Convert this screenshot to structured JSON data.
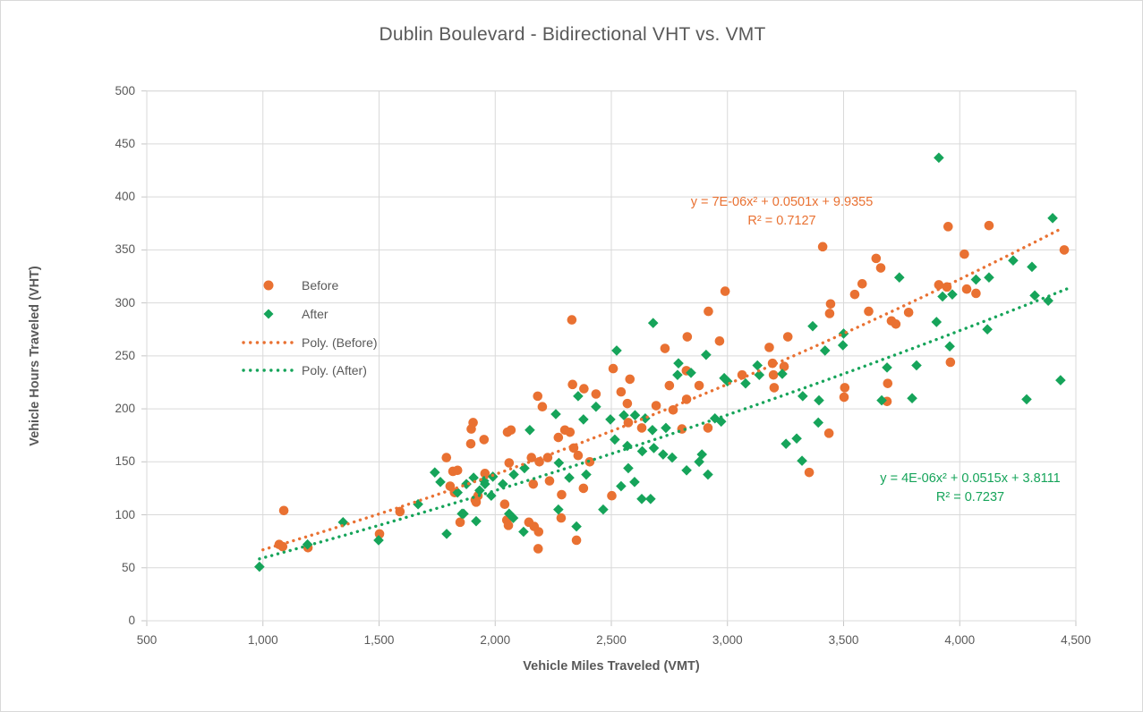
{
  "title": "Dublin Boulevard - Bidirectional VHT vs. VMT",
  "axes": {
    "x_label": "Vehicle Miles Traveled (VMT)",
    "y_label": "Vehicle Hours Traveled (VHT)",
    "x_tick_labels": [
      "500",
      "1,000",
      "1,500",
      "2,000",
      "2,500",
      "3,000",
      "3,500",
      "4,000",
      "4,500"
    ],
    "y_tick_labels": [
      "0",
      "50",
      "100",
      "150",
      "200",
      "250",
      "300",
      "350",
      "400",
      "450",
      "500"
    ]
  },
  "legend": {
    "items": [
      {
        "label": "Before",
        "marker": "circle",
        "color": "#E97132"
      },
      {
        "label": "After",
        "marker": "diamond",
        "color": "#16A45A"
      },
      {
        "label": "Poly. (Before)",
        "marker": "dotted-line",
        "color": "#E97132"
      },
      {
        "label": "Poly. (After)",
        "marker": "dotted-line",
        "color": "#16A45A"
      }
    ]
  },
  "annotations": {
    "before": {
      "line1": "y = 7E-06x² + 0.0501x + 9.9355",
      "line2": "R² = 0.7127"
    },
    "after": {
      "line1": "y = 4E-06x² + 0.0515x + 3.8111",
      "line2": "R² = 0.7237"
    }
  },
  "colors": {
    "before": "#E97132",
    "after": "#16A45A",
    "gridline": "#D9D9D9",
    "tick": "#C6C6C6",
    "text": "#595959"
  },
  "chart_data": {
    "type": "scatter",
    "title": "Dublin Boulevard - Bidirectional VHT vs. VMT",
    "xlabel": "Vehicle Miles Traveled (VMT)",
    "ylabel": "Vehicle Hours Traveled (VHT)",
    "xlim": [
      500,
      4500
    ],
    "ylim": [
      0,
      500
    ],
    "x_tick_step": 500,
    "y_tick_step": 50,
    "grid": true,
    "legend_position": "inside-upper-left",
    "series": [
      {
        "name": "Before",
        "marker": "circle",
        "color": "#E97132",
        "points": [
          [
            1070,
            72
          ],
          [
            1085,
            70
          ],
          [
            1090,
            104
          ],
          [
            1194,
            69
          ],
          [
            1502,
            82
          ],
          [
            1590,
            103
          ],
          [
            1790,
            154
          ],
          [
            1806,
            127
          ],
          [
            1818,
            141
          ],
          [
            1825,
            121
          ],
          [
            1838,
            142
          ],
          [
            1849,
            93
          ],
          [
            1895,
            167
          ],
          [
            1897,
            181
          ],
          [
            1905,
            187
          ],
          [
            1914,
            114
          ],
          [
            1918,
            112
          ],
          [
            1926,
            118
          ],
          [
            1952,
            171
          ],
          [
            1956,
            139
          ],
          [
            2041,
            110
          ],
          [
            2050,
            95
          ],
          [
            2053,
            178
          ],
          [
            2057,
            90
          ],
          [
            2060,
            149
          ],
          [
            2068,
            180
          ],
          [
            2145,
            93
          ],
          [
            2156,
            154
          ],
          [
            2164,
            129
          ],
          [
            2168,
            89
          ],
          [
            2183,
            212
          ],
          [
            2185,
            68
          ],
          [
            2187,
            84
          ],
          [
            2190,
            150
          ],
          [
            2203,
            202
          ],
          [
            2226,
            154
          ],
          [
            2234,
            132
          ],
          [
            2272,
            173
          ],
          [
            2284,
            97
          ],
          [
            2286,
            119
          ],
          [
            2300,
            180
          ],
          [
            2322,
            178
          ],
          [
            2330,
            284
          ],
          [
            2333,
            223
          ],
          [
            2338,
            163
          ],
          [
            2350,
            76
          ],
          [
            2357,
            156
          ],
          [
            2380,
            125
          ],
          [
            2382,
            219
          ],
          [
            2407,
            150
          ],
          [
            2434,
            214
          ],
          [
            2502,
            118
          ],
          [
            2508,
            238
          ],
          [
            2542,
            216
          ],
          [
            2569,
            205
          ],
          [
            2573,
            187
          ],
          [
            2580,
            228
          ],
          [
            2631,
            182
          ],
          [
            2693,
            203
          ],
          [
            2731,
            257
          ],
          [
            2750,
            222
          ],
          [
            2766,
            199
          ],
          [
            2804,
            181
          ],
          [
            2823,
            236
          ],
          [
            2824,
            209
          ],
          [
            2827,
            268
          ],
          [
            2878,
            222
          ],
          [
            2916,
            182
          ],
          [
            2918,
            292
          ],
          [
            2966,
            264
          ],
          [
            2990,
            311
          ],
          [
            3063,
            232
          ],
          [
            3180,
            258
          ],
          [
            3194,
            243
          ],
          [
            3198,
            232
          ],
          [
            3201,
            220
          ],
          [
            3244,
            240
          ],
          [
            3260,
            268
          ],
          [
            3352,
            140
          ],
          [
            3410,
            353
          ],
          [
            3437,
            177
          ],
          [
            3440,
            290
          ],
          [
            3444,
            299
          ],
          [
            3502,
            211
          ],
          [
            3505,
            220
          ],
          [
            3548,
            308
          ],
          [
            3580,
            318
          ],
          [
            3608,
            292
          ],
          [
            3640,
            342
          ],
          [
            3660,
            333
          ],
          [
            3687,
            207
          ],
          [
            3690,
            224
          ],
          [
            3706,
            283
          ],
          [
            3725,
            280
          ],
          [
            3780,
            291
          ],
          [
            3910,
            317
          ],
          [
            3945,
            315
          ],
          [
            3950,
            372
          ],
          [
            3960,
            244
          ],
          [
            4020,
            346
          ],
          [
            4030,
            313
          ],
          [
            4070,
            309
          ],
          [
            4126,
            373
          ],
          [
            4450,
            350
          ]
        ]
      },
      {
        "name": "After",
        "marker": "diamond",
        "color": "#16A45A",
        "points": [
          [
            985,
            51
          ],
          [
            1192,
            72
          ],
          [
            1345,
            93
          ],
          [
            1498,
            76
          ],
          [
            1668,
            110
          ],
          [
            1740,
            140
          ],
          [
            1764,
            131
          ],
          [
            1791,
            82
          ],
          [
            1838,
            121
          ],
          [
            1857,
            101
          ],
          [
            1864,
            101
          ],
          [
            1876,
            129
          ],
          [
            1907,
            135
          ],
          [
            1918,
            94
          ],
          [
            1933,
            123
          ],
          [
            1952,
            132
          ],
          [
            1956,
            129
          ],
          [
            1983,
            118
          ],
          [
            1990,
            136
          ],
          [
            2033,
            129
          ],
          [
            2060,
            101
          ],
          [
            2078,
            97
          ],
          [
            2080,
            138
          ],
          [
            2122,
            84
          ],
          [
            2126,
            144
          ],
          [
            2149,
            180
          ],
          [
            2261,
            195
          ],
          [
            2272,
            105
          ],
          [
            2274,
            149
          ],
          [
            2319,
            135
          ],
          [
            2350,
            89
          ],
          [
            2357,
            212
          ],
          [
            2380,
            190
          ],
          [
            2392,
            138
          ],
          [
            2434,
            202
          ],
          [
            2465,
            105
          ],
          [
            2496,
            190
          ],
          [
            2515,
            171
          ],
          [
            2523,
            255
          ],
          [
            2542,
            127
          ],
          [
            2554,
            194
          ],
          [
            2569,
            165
          ],
          [
            2573,
            144
          ],
          [
            2600,
            131
          ],
          [
            2602,
            194
          ],
          [
            2631,
            115
          ],
          [
            2633,
            160
          ],
          [
            2646,
            191
          ],
          [
            2669,
            115
          ],
          [
            2677,
            180
          ],
          [
            2680,
            281
          ],
          [
            2683,
            163
          ],
          [
            2723,
            157
          ],
          [
            2735,
            182
          ],
          [
            2762,
            154
          ],
          [
            2785,
            232
          ],
          [
            2789,
            243
          ],
          [
            2824,
            142
          ],
          [
            2843,
            234
          ],
          [
            2878,
            150
          ],
          [
            2890,
            157
          ],
          [
            2908,
            251
          ],
          [
            2916,
            138
          ],
          [
            2946,
            191
          ],
          [
            2973,
            188
          ],
          [
            2986,
            229
          ],
          [
            3000,
            226
          ],
          [
            3078,
            224
          ],
          [
            3129,
            241
          ],
          [
            3137,
            232
          ],
          [
            3236,
            233
          ],
          [
            3252,
            167
          ],
          [
            3298,
            172
          ],
          [
            3321,
            151
          ],
          [
            3324,
            212
          ],
          [
            3367,
            278
          ],
          [
            3391,
            187
          ],
          [
            3394,
            208
          ],
          [
            3420,
            255
          ],
          [
            3497,
            260
          ],
          [
            3500,
            271
          ],
          [
            3664,
            208
          ],
          [
            3687,
            239
          ],
          [
            3740,
            324
          ],
          [
            3795,
            210
          ],
          [
            3814,
            241
          ],
          [
            3900,
            282
          ],
          [
            3910,
            437
          ],
          [
            3926,
            306
          ],
          [
            3957,
            259
          ],
          [
            3968,
            308
          ],
          [
            4070,
            322
          ],
          [
            4119,
            275
          ],
          [
            4126,
            324
          ],
          [
            4230,
            340
          ],
          [
            4288,
            209
          ],
          [
            4311,
            334
          ],
          [
            4323,
            307
          ],
          [
            4381,
            302
          ],
          [
            4400,
            380
          ],
          [
            4434,
            227
          ]
        ]
      }
    ],
    "trendlines": [
      {
        "name": "Poly. (Before)",
        "color": "#E97132",
        "equation": "y = 7E-06x² + 0.0501x + 9.9355",
        "r_squared": 0.7127,
        "coefficients": {
          "a": 7e-06,
          "b": 0.0501,
          "c": 9.9355
        },
        "x_range": [
          1000,
          4440
        ]
      },
      {
        "name": "Poly. (After)",
        "color": "#16A45A",
        "equation": "y = 4E-06x² + 0.0515x + 3.8111",
        "r_squared": 0.7237,
        "coefficients": {
          "a": 4e-06,
          "b": 0.0515,
          "c": 3.8111
        },
        "x_range": [
          985,
          4480
        ]
      }
    ]
  }
}
